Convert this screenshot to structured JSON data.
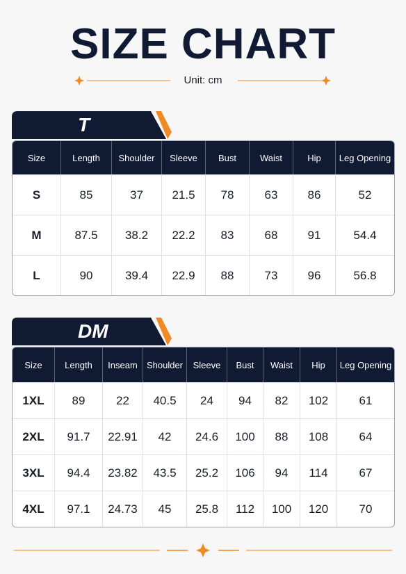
{
  "header": {
    "title": "SIZE CHART",
    "unit": "Unit: cm"
  },
  "tables": [
    {
      "label": "T",
      "columns": [
        "Size",
        "Length",
        "Shoulder",
        "Sleeve",
        "Bust",
        "Waist",
        "Hip",
        "Leg Opening"
      ],
      "rows": [
        [
          "S",
          "85",
          "37",
          "21.5",
          "78",
          "63",
          "86",
          "52"
        ],
        [
          "M",
          "87.5",
          "38.2",
          "22.2",
          "83",
          "68",
          "91",
          "54.4"
        ],
        [
          "L",
          "90",
          "39.4",
          "22.9",
          "88",
          "73",
          "96",
          "56.8"
        ]
      ]
    },
    {
      "label": "DM",
      "columns": [
        "Size",
        "Length",
        "Inseam",
        "Shoulder",
        "Sleeve",
        "Bust",
        "Waist",
        "Hip",
        "Leg Opening"
      ],
      "rows": [
        [
          "1XL",
          "89",
          "22",
          "40.5",
          "24",
          "94",
          "82",
          "102",
          "61"
        ],
        [
          "2XL",
          "91.7",
          "22.91",
          "42",
          "24.6",
          "100",
          "88",
          "108",
          "64"
        ],
        [
          "3XL",
          "94.4",
          "23.82",
          "43.5",
          "25.2",
          "106",
          "94",
          "114",
          "67"
        ],
        [
          "4XL",
          "97.1",
          "24.73",
          "45",
          "25.8",
          "112",
          "100",
          "120",
          "70"
        ]
      ]
    }
  ]
}
